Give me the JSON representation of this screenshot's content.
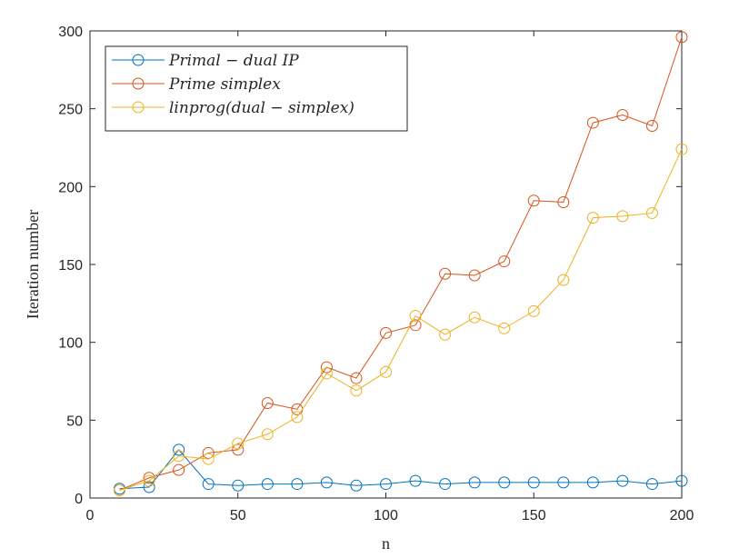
{
  "chart_data": {
    "type": "line",
    "xlabel": "n",
    "ylabel": "Iteration number",
    "xlim": [
      0,
      200
    ],
    "ylim": [
      0,
      300
    ],
    "xticks": [
      0,
      50,
      100,
      150,
      200
    ],
    "yticks": [
      0,
      50,
      100,
      150,
      200,
      250,
      300
    ],
    "grid": false,
    "legend_position": "top-left",
    "x": [
      10,
      20,
      30,
      40,
      50,
      60,
      70,
      80,
      90,
      100,
      110,
      120,
      130,
      140,
      150,
      160,
      170,
      180,
      190,
      200
    ],
    "series": [
      {
        "name": "Primal − dual IP",
        "color": "#0072BD",
        "marker": "circle",
        "values": [
          6,
          7,
          31,
          9,
          8,
          9,
          9,
          10,
          8,
          9,
          11,
          9,
          10,
          10,
          10,
          10,
          10,
          11,
          9,
          11
        ]
      },
      {
        "name": "Prime simplex",
        "color": "#D95319",
        "marker": "circle",
        "values": [
          5,
          13,
          18,
          29,
          31,
          61,
          57,
          84,
          77,
          106,
          111,
          144,
          143,
          152,
          191,
          190,
          241,
          246,
          239,
          296
        ]
      },
      {
        "name": "linprog(dual − simplex)",
        "color": "#EDB120",
        "marker": "circle",
        "values": [
          5,
          11,
          27,
          25,
          35,
          41,
          52,
          80,
          69,
          81,
          117,
          105,
          116,
          109,
          120,
          140,
          180,
          181,
          183,
          224
        ]
      }
    ]
  }
}
